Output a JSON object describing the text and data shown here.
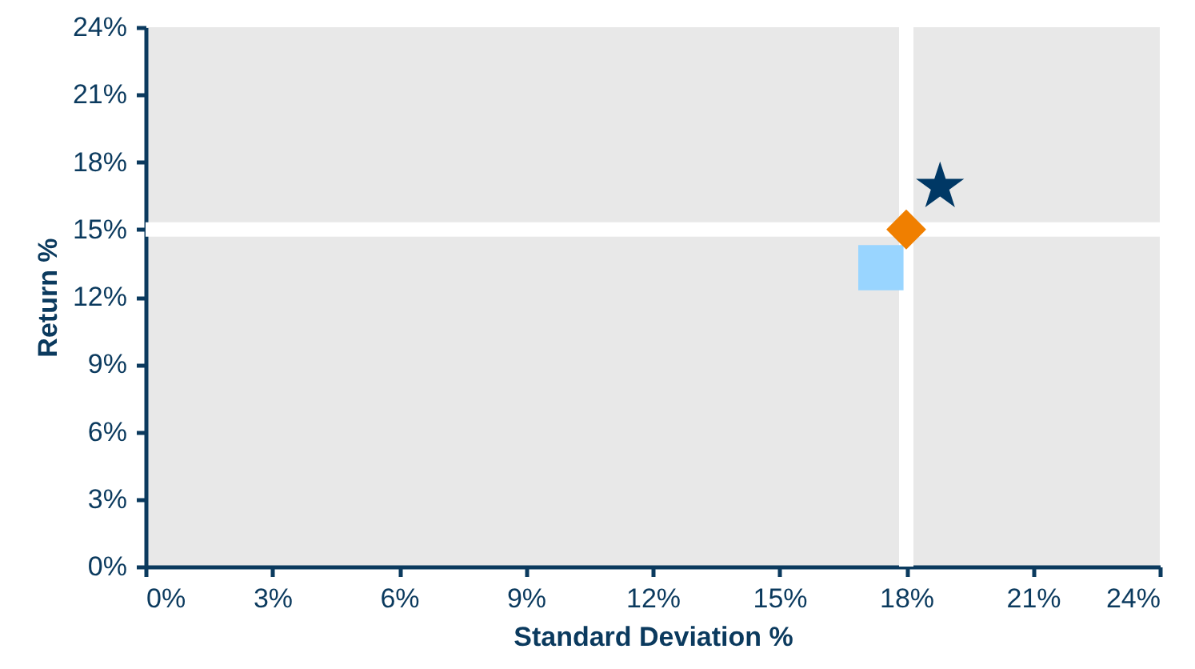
{
  "chart_data": {
    "type": "scatter",
    "xlabel": "Standard Deviation %",
    "ylabel": "Return %",
    "xlim": [
      0,
      24
    ],
    "ylim": [
      0,
      24
    ],
    "xticks": [
      {
        "value": 0,
        "label": "0%"
      },
      {
        "value": 3,
        "label": "3%"
      },
      {
        "value": 6,
        "label": "6%"
      },
      {
        "value": 9,
        "label": "9%"
      },
      {
        "value": 12,
        "label": "12%"
      },
      {
        "value": 15,
        "label": "15%"
      },
      {
        "value": 18,
        "label": "18%"
      },
      {
        "value": 21,
        "label": "21%"
      },
      {
        "value": 24,
        "label": "24%"
      }
    ],
    "yticks": [
      {
        "value": 0,
        "label": "0%"
      },
      {
        "value": 3,
        "label": "3%"
      },
      {
        "value": 6,
        "label": "6%"
      },
      {
        "value": 9,
        "label": "9%"
      },
      {
        "value": 12,
        "label": "12%"
      },
      {
        "value": 15,
        "label": "15%"
      },
      {
        "value": 18,
        "label": "18%"
      },
      {
        "value": 21,
        "label": "21%"
      },
      {
        "value": 24,
        "label": "24%"
      }
    ],
    "grid": false,
    "ref_lines": [
      {
        "axis": "x",
        "value": 18,
        "color": "#ffffff"
      },
      {
        "axis": "y",
        "value": 15,
        "color": "#ffffff"
      }
    ],
    "series": [
      {
        "color": "#99d5ff",
        "marker": "square",
        "x": [
          17.4
        ],
        "values": [
          13.3
        ]
      },
      {
        "color": "#f07f00",
        "marker": "diamond",
        "x": [
          18.0
        ],
        "values": [
          15.0
        ]
      },
      {
        "color": "#003865",
        "marker": "star",
        "x": [
          18.8
        ],
        "values": [
          16.9
        ]
      }
    ]
  }
}
